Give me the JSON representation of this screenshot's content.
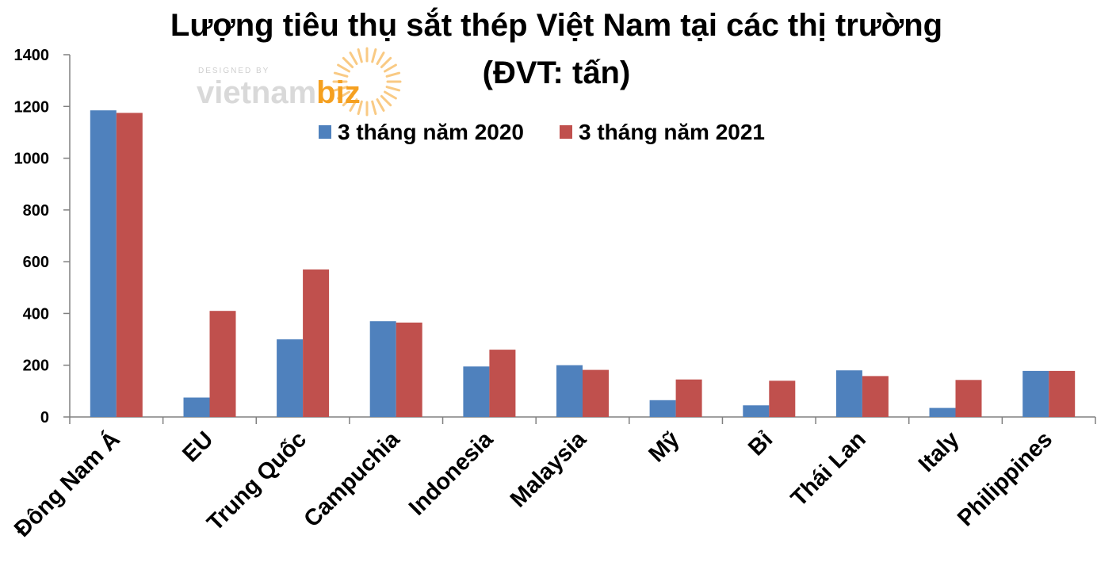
{
  "chart_data": {
    "type": "bar",
    "title": "Lượng tiêu thụ sắt thép Việt Nam tại các thị trường",
    "subtitle": "(ĐVT: tấn)",
    "categories": [
      "Đông Nam Á",
      "EU",
      "Trung Quốc",
      "Campuchia",
      "Indonesia",
      "Malaysia",
      "Mỹ",
      "Bỉ",
      "Thái Lan",
      "Italy",
      "Philippines"
    ],
    "series": [
      {
        "name": "3 tháng năm 2020",
        "color": "#4f81bd",
        "values": [
          1185,
          75,
          300,
          370,
          195,
          200,
          65,
          45,
          180,
          35,
          178
        ]
      },
      {
        "name": "3 tháng năm 2021",
        "color": "#c0504d",
        "values": [
          1175,
          410,
          570,
          365,
          260,
          182,
          145,
          140,
          158,
          143,
          178
        ]
      }
    ],
    "ylim": [
      0,
      1400
    ],
    "yticks": [
      "0",
      "200",
      "400",
      "600",
      "800",
      "1000",
      "1200",
      "1400"
    ],
    "grid": false,
    "legend_position": "top-center"
  },
  "watermark": {
    "small_text": "DESIGNED BY",
    "brand_main": "vietnam",
    "brand_accent": "biz",
    "accent_color": "#f5a020"
  }
}
